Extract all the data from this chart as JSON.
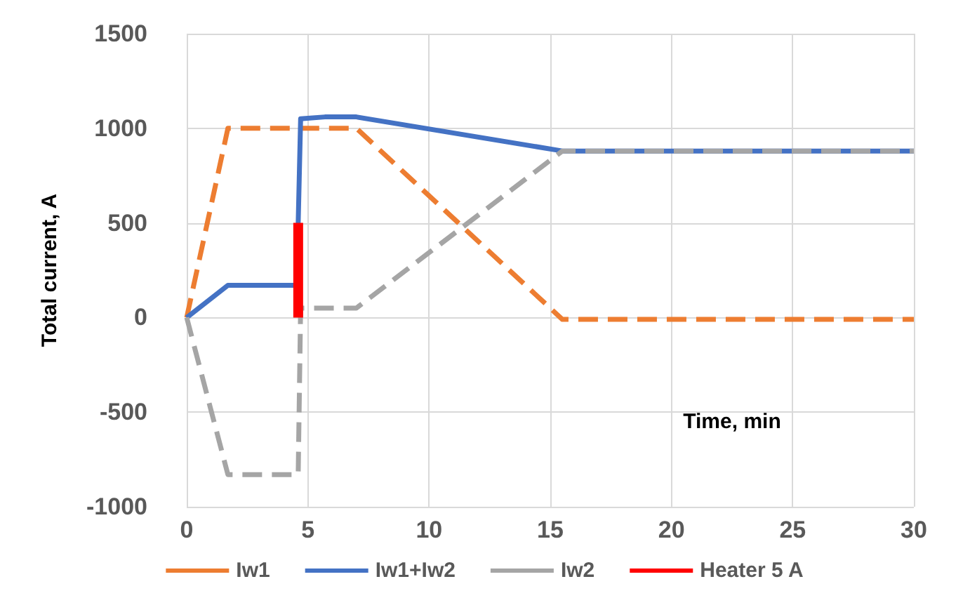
{
  "chart_data": {
    "type": "line",
    "xlabel": "Time, min",
    "ylabel": "Total current, A",
    "xlim": [
      0,
      30
    ],
    "xticks": [
      0,
      5,
      10,
      15,
      20,
      25,
      30
    ],
    "ylim": [
      -1000,
      1500
    ],
    "yticks": [
      -1000,
      -500,
      0,
      500,
      1000,
      1500
    ],
    "grid": true,
    "legend": "bottom",
    "marker": "none",
    "series": [
      {
        "name": "Iw1",
        "color": "#ed7d31",
        "line_style": "dashed",
        "x": [
          0,
          1.7,
          7,
          15.5,
          30
        ],
        "values": [
          0,
          1000,
          1000,
          -10,
          -10
        ]
      },
      {
        "name": "Iw1+Iw2",
        "color": "#4472c4",
        "line_style": "solid",
        "x": [
          0,
          1.7,
          4.6,
          4.6,
          4.7,
          5.7,
          7,
          15.5,
          30
        ],
        "values": [
          0,
          170,
          170,
          500,
          1050,
          1060,
          1060,
          880,
          880
        ]
      },
      {
        "name": "Iw2",
        "color": "#a5a5a5",
        "line_style": "dashed",
        "x": [
          0,
          1.7,
          4.6,
          4.7,
          7,
          15.5,
          30
        ],
        "values": [
          0,
          -830,
          -830,
          50,
          50,
          880,
          880
        ]
      },
      {
        "name": "Heater 5 A",
        "color": "#ff0000",
        "line_style": "solid",
        "x": [
          4.6,
          4.6
        ],
        "values": [
          0,
          500
        ]
      }
    ]
  }
}
